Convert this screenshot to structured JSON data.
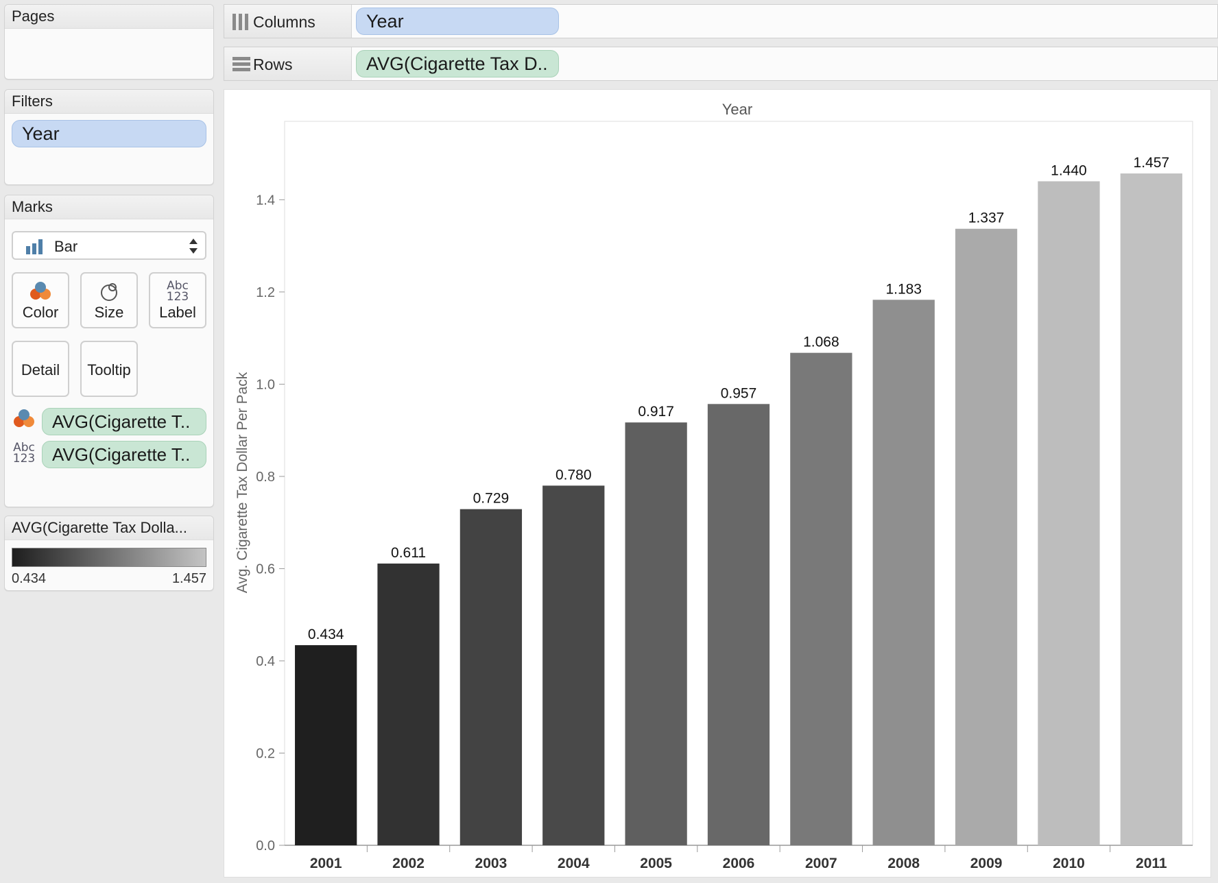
{
  "panels": {
    "pages_title": "Pages",
    "filters_title": "Filters",
    "filters_pill": "Year",
    "marks_title": "Marks",
    "mark_type": "Bar",
    "mark_buttons": {
      "color": "Color",
      "size": "Size",
      "label": "Label",
      "detail": "Detail",
      "tooltip": "Tooltip"
    },
    "mark_fields": {
      "color_field": "AVG(Cigarette T..",
      "label_field": "AVG(Cigarette T.."
    },
    "legend_title": "AVG(Cigarette Tax Dolla...",
    "legend_min": "0.434",
    "legend_max": "1.457",
    "legend_colors": [
      "#1e1e1e",
      "#c4c4c4"
    ]
  },
  "shelves": {
    "columns_label": "Columns",
    "columns_pill": "Year",
    "rows_label": "Rows",
    "rows_pill": "AVG(Cigarette Tax D.."
  },
  "chart_data": {
    "type": "bar",
    "title": "Year",
    "ylabel": "Avg. Cigarette Tax Dollar Per Pack",
    "xlabel": "",
    "categories": [
      "2001",
      "2002",
      "2003",
      "2004",
      "2005",
      "2006",
      "2007",
      "2008",
      "2009",
      "2010",
      "2011"
    ],
    "values": [
      0.434,
      0.611,
      0.729,
      0.78,
      0.917,
      0.957,
      1.068,
      1.183,
      1.337,
      1.44,
      1.457
    ],
    "labels": [
      "0.434",
      "0.611",
      "0.729",
      "0.780",
      "0.917",
      "0.957",
      "1.068",
      "1.183",
      "1.337",
      "1.440",
      "1.457"
    ],
    "ylim": [
      0,
      1.57
    ],
    "yticks": [
      "0.0",
      "0.2",
      "0.4",
      "0.6",
      "0.8",
      "1.0",
      "1.2",
      "1.4"
    ],
    "ytick_values": [
      0,
      0.2,
      0.4,
      0.6,
      0.8,
      1.0,
      1.2,
      1.4
    ],
    "bar_colors": [
      "#1f1f1f",
      "#323232",
      "#434343",
      "#494949",
      "#5f5f5f",
      "#686868",
      "#797979",
      "#8f8f8f",
      "#aaaaaa",
      "#bdbdbd",
      "#c1c1c1"
    ],
    "grid": false
  }
}
